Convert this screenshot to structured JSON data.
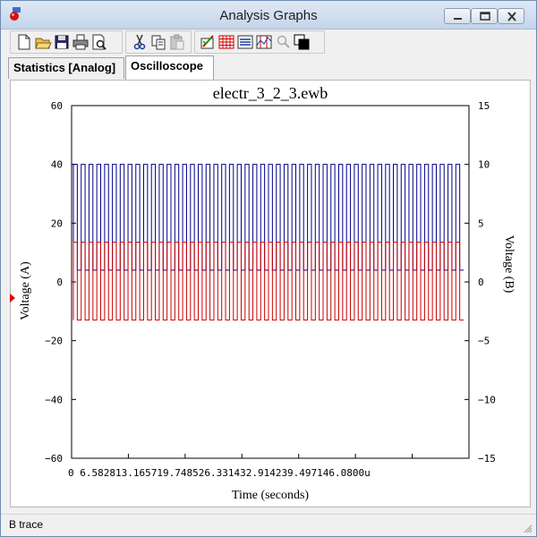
{
  "window": {
    "title": "Analysis Graphs"
  },
  "titlebar_buttons": [
    {
      "name": "minimize-button",
      "icon": "minimize-icon"
    },
    {
      "name": "maximize-button",
      "icon": "maximize-icon"
    },
    {
      "name": "close-button",
      "icon": "close-icon"
    }
  ],
  "toolbar": {
    "buttons": [
      {
        "name": "new-button",
        "icon": "new-document-icon"
      },
      {
        "name": "open-button",
        "icon": "open-folder-icon"
      },
      {
        "name": "save-button",
        "icon": "save-disk-icon"
      },
      {
        "name": "print-button",
        "icon": "printer-icon"
      },
      {
        "name": "print-preview-button",
        "icon": "print-preview-icon"
      },
      {
        "name": "cut-button",
        "icon": "scissors-icon"
      },
      {
        "name": "copy-button",
        "icon": "copy-icon"
      },
      {
        "name": "paste-button",
        "icon": "paste-icon",
        "disabled": true
      },
      {
        "name": "properties-button",
        "icon": "properties-icon"
      },
      {
        "name": "toggle-grid-button",
        "icon": "grid-icon"
      },
      {
        "name": "toggle-legend-button",
        "icon": "legend-icon"
      },
      {
        "name": "cursors-button",
        "icon": "cursor-icon"
      },
      {
        "name": "zoom-button",
        "icon": "zoom-icon",
        "disabled": true
      },
      {
        "name": "reverse-colors-button",
        "icon": "reverse-colors-icon"
      }
    ]
  },
  "tabs": [
    {
      "label": "Statistics [Analog]",
      "active": false
    },
    {
      "label": "Oscilloscope",
      "active": true
    }
  ],
  "status": {
    "text": "B trace"
  },
  "chart_data": {
    "type": "line",
    "title": "electr_3_2_3.ewb",
    "xlabel": "Time (seconds)",
    "ylabel_left": "Voltage (A)",
    "ylabel_right": "Voltage (B)",
    "xlim": [
      0,
      46.08
    ],
    "x_unit_suffix": "u",
    "x_tick_labels": [
      "0",
      "6.5828",
      "13.1657",
      "19.7485",
      "26.3314",
      "32.9142",
      "39.4971",
      "46.0800"
    ],
    "y_left_lim": [
      -60,
      60
    ],
    "y_left_ticks": [
      60,
      40,
      20,
      0,
      -20,
      -40,
      -60
    ],
    "y_right_lim": [
      -15,
      15
    ],
    "y_right_ticks": [
      15,
      10,
      5,
      0,
      -5,
      -10,
      -15
    ],
    "grid": false,
    "series": [
      {
        "trace": "A",
        "color": "#00008b",
        "axis": "left",
        "waveform": "square",
        "high": 40,
        "low": 4,
        "cycles": 50
      },
      {
        "trace": "B",
        "color": "#cc0000",
        "axis": "left",
        "waveform": "square",
        "high": 13.5,
        "low": -13,
        "cycles": 50
      }
    ],
    "active_trace_marker_color": "#e00000"
  }
}
